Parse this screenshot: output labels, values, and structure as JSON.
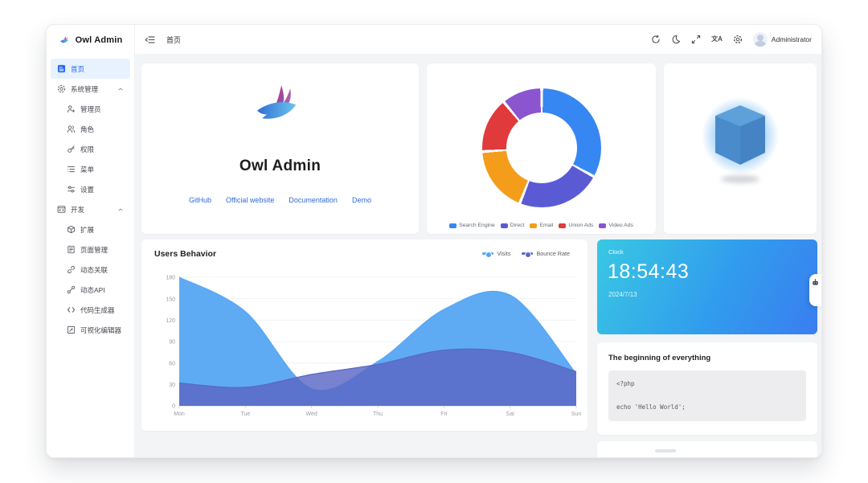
{
  "app": {
    "brand": "Owl Admin",
    "accent_color": "#2468f2"
  },
  "sidebar": {
    "items": [
      {
        "label": "首页",
        "active": true
      },
      {
        "label": "系统管理",
        "group": true
      },
      {
        "label": "管理员"
      },
      {
        "label": "角色"
      },
      {
        "label": "权限"
      },
      {
        "label": "菜单"
      },
      {
        "label": "设置"
      },
      {
        "label": "开发",
        "group": true
      },
      {
        "label": "扩展"
      },
      {
        "label": "页面管理"
      },
      {
        "label": "动态关联"
      },
      {
        "label": "动态API"
      },
      {
        "label": "代码生成器"
      },
      {
        "label": "可视化编辑器"
      }
    ]
  },
  "header": {
    "tab": "首页",
    "user": "Administrator",
    "translate_glyph": "文A"
  },
  "welcome": {
    "title": "Owl Admin",
    "links": {
      "github": "GitHub",
      "official": "Official website",
      "docs": "Documentation",
      "demo": "Demo"
    }
  },
  "clock": {
    "label": "Clock",
    "time": "18:54:43",
    "date": "2024/7/13"
  },
  "code_card": {
    "title": "The beginning of everything",
    "code_lines": [
      "<?php",
      "",
      "echo 'Hello World';"
    ]
  },
  "chart_data": [
    {
      "type": "pie",
      "subtype": "donut",
      "labels": [
        "Search Engine",
        "Direct",
        "Email",
        "Union Ads",
        "Video Ads"
      ],
      "values": [
        33,
        23,
        18,
        15,
        11
      ],
      "unit": "percent",
      "colors": [
        "#3787f2",
        "#5a5bd4",
        "#f49d1b",
        "#e03a3c",
        "#8a55cf"
      ],
      "legend_position": "bottom",
      "start_angle_deg": 0,
      "clockwise": true
    },
    {
      "type": "area",
      "title": "Users Behavior",
      "x": [
        "Mon",
        "Tue",
        "Wed",
        "Thu",
        "Fri",
        "Sat",
        "Sun"
      ],
      "series": [
        {
          "name": "Visits",
          "color": "#55a6f3",
          "values": [
            180,
            132,
            24,
            62,
            135,
            155,
            45
          ]
        },
        {
          "name": "Bounce Rate",
          "color": "#5a67c4",
          "values": [
            32,
            26,
            44,
            58,
            78,
            75,
            48
          ]
        }
      ],
      "ylim": [
        0,
        180
      ],
      "yticks": [
        0,
        30,
        60,
        90,
        120,
        150,
        180
      ],
      "grid": true,
      "legend_position": "top-right",
      "smooth": true
    }
  ]
}
